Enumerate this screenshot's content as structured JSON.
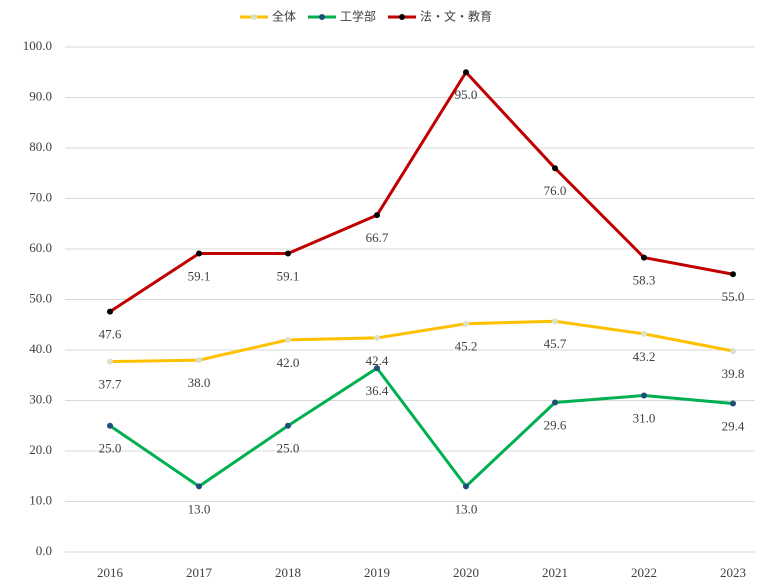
{
  "chart_data": {
    "type": "line",
    "categories": [
      "2016",
      "2017",
      "2018",
      "2019",
      "2020",
      "2021",
      "2022",
      "2023"
    ],
    "series": [
      {
        "name": "全体",
        "color": "#ffc000",
        "marker_color": "#d9e1c8",
        "values": [
          37.7,
          38.0,
          42.0,
          42.4,
          45.2,
          45.7,
          43.2,
          39.8
        ],
        "value_labels": [
          "37.7",
          "38.0",
          "42.0",
          "42.4",
          "45.2",
          "45.7",
          "43.2",
          "39.8"
        ]
      },
      {
        "name": "工学部",
        "color": "#00b050",
        "marker_color": "#1f4e79",
        "values": [
          25.0,
          13.0,
          25.0,
          36.4,
          13.0,
          29.6,
          31.0,
          29.4
        ],
        "value_labels": [
          "25.0",
          "13.0",
          "25.0",
          "36.4",
          "13.0",
          "29.6",
          "31.0",
          "29.4"
        ]
      },
      {
        "name": "法・文・教育",
        "color": "#c00000",
        "marker_color": "#000000",
        "values": [
          47.6,
          59.1,
          59.1,
          66.7,
          95.0,
          76.0,
          58.3,
          55.0
        ],
        "value_labels": [
          "47.6",
          "59.1",
          "59.1",
          "66.7",
          "95.0",
          "76.0",
          "58.3",
          "55.0"
        ]
      }
    ],
    "ylim": [
      0,
      100
    ],
    "yticks": [
      {
        "value": 0,
        "label": "0.0"
      },
      {
        "value": 10,
        "label": "10.0"
      },
      {
        "value": 20,
        "label": "20.0"
      },
      {
        "value": 30,
        "label": "30.0"
      },
      {
        "value": 40,
        "label": "40.0"
      },
      {
        "value": 50,
        "label": "50.0"
      },
      {
        "value": 60,
        "label": "60.0"
      },
      {
        "value": 70,
        "label": "70.0"
      },
      {
        "value": 80,
        "label": "80.0"
      },
      {
        "value": 90,
        "label": "90.0"
      },
      {
        "value": {
          "value": 100,
          "label": "100.0"
        }
      }
    ],
    "grid": true,
    "legend": "top"
  }
}
